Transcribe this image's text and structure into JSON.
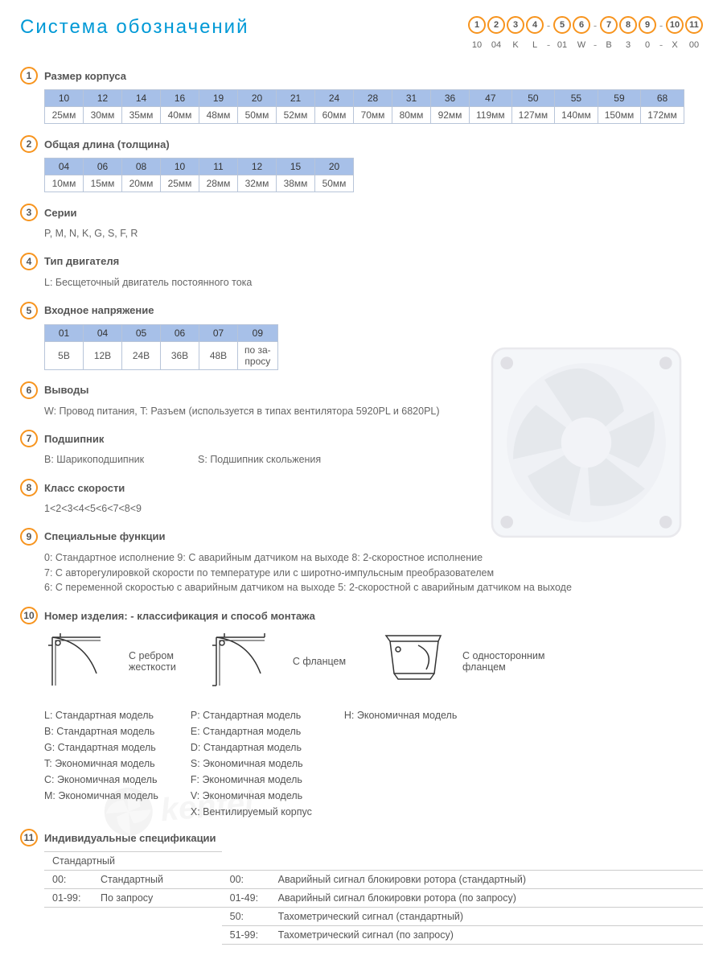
{
  "title": "Система обозначений",
  "code_positions": [
    "1",
    "2",
    "3",
    "4",
    "5",
    "6",
    "7",
    "8",
    "9",
    "10",
    "11"
  ],
  "code_values": [
    "10",
    "04",
    "K",
    "L",
    "01",
    "W",
    "B",
    "3",
    "0",
    "X",
    "00"
  ],
  "code_dashes_after": [
    4,
    6,
    9
  ],
  "sections": {
    "s1": {
      "num": "1",
      "title": "Размер корпуса"
    },
    "s2": {
      "num": "2",
      "title": "Общая длина (толщина)"
    },
    "s3": {
      "num": "3",
      "title": "Серии",
      "body": "P, M, N, K, G, S, F, R"
    },
    "s4": {
      "num": "4",
      "title": "Тип двигателя",
      "body": "L: Бесщеточный двигатель постоянного тока"
    },
    "s5": {
      "num": "5",
      "title": "Входное напряжение"
    },
    "s6": {
      "num": "6",
      "title": "Выводы",
      "body": "W: Провод питания, T: Разъем (используется в типах вентилятора  5920PL и 6820PL)"
    },
    "s7": {
      "num": "7",
      "title": "Подшипник",
      "body_a": "B: Шарикоподшипник",
      "body_b": "S: Подшипник скольжения"
    },
    "s8": {
      "num": "8",
      "title": "Класс скорости",
      "body": "1<2<3<4<5<6<7<8<9"
    },
    "s9": {
      "num": "9",
      "title": "Специальные функции",
      "l1": "0: Стандартное исполнение   9:  С аварийным датчиком на выходе   8: 2-скоростное исполнение",
      "l2": "7: С авторегулировкой скорости по температуре или с широтно-импульсным преобразователем",
      "l3": "6: С переменной скоростью с аварийным датчиком на выходе   5: 2-скоростной с аварийным датчиком на выходе"
    },
    "s10": {
      "num": "10",
      "title": "Номер изделия: - классификация  и способ монтажа"
    },
    "s11": {
      "num": "11",
      "title": "Индивидуальные спецификации"
    }
  },
  "table1": {
    "header": [
      "10",
      "12",
      "14",
      "16",
      "19",
      "20",
      "21",
      "24",
      "28",
      "31",
      "36",
      "47",
      "50",
      "55",
      "59",
      "68"
    ],
    "row": [
      "25мм",
      "30мм",
      "35мм",
      "40мм",
      "48мм",
      "50мм",
      "52мм",
      "60мм",
      "70мм",
      "80мм",
      "92мм",
      "119мм",
      "127мм",
      "140мм",
      "150мм",
      "172мм"
    ]
  },
  "table2": {
    "header": [
      "04",
      "06",
      "08",
      "10",
      "11",
      "12",
      "15",
      "20"
    ],
    "row": [
      "10мм",
      "15мм",
      "20мм",
      "25мм",
      "28мм",
      "32мм",
      "38мм",
      "50мм"
    ]
  },
  "table5": {
    "header": [
      "01",
      "04",
      "05",
      "06",
      "07",
      "09"
    ],
    "row": [
      "5В",
      "12В",
      "24В",
      "36В",
      "48В",
      "по за-\nпросу"
    ]
  },
  "mount": {
    "img1_label": "С ребром\nжесткости",
    "img2_label": "С фланцем",
    "img3_label": "С односторонним\nфланцем",
    "col1": [
      "L:  Стандартная модель",
      "B:  Стандартная модель",
      "G:  Стандартная модель",
      "T:  Экономичная модель",
      "C:  Экономичная модель",
      "M:  Экономичная модель"
    ],
    "col2": [
      "P:  Стандартная модель",
      "E:  Стандартная модель",
      "D:  Стандартная модель",
      "S:  Экономичная модель",
      "F:  Экономичная модель",
      "V:  Экономичная модель",
      "X:  Вентилируемый корпус"
    ],
    "col3": [
      "H:  Экономичная модель"
    ]
  },
  "spec11": {
    "h1": "Стандартный",
    "r1a": "00:",
    "r1b": "Стандартный",
    "r1c": "00:",
    "r1d": "Аварийный сигнал блокировки ротора (стандартный)",
    "r2a": "01-99:",
    "r2b": "По запросу",
    "r2c": "01-49:",
    "r2d": "Аварийный сигнал блокировки ротора (по запросу)",
    "r3c": "50:",
    "r3d": "Тахометрический сигнал (стандартный)",
    "r4c": "51-99:",
    "r4d": "Тахометрический сигнал (по запросу)"
  },
  "colors": {
    "accent": "#f7941e",
    "title": "#0099d6",
    "header_bg": "#a7c0e8",
    "border": "#b8c5d9"
  }
}
